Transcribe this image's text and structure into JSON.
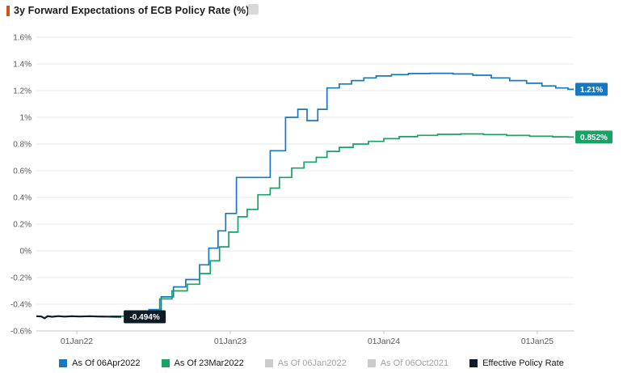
{
  "title": "3y Forward Expectations of ECB Policy Rate (%)",
  "colors": {
    "accent": "#cf5420",
    "blue": "#1878be",
    "green": "#17a266",
    "dark": "#0e1c26",
    "inactive_gray": "#cccccc",
    "grid": "#e9e9e9",
    "axis_line": "#c4c4c4",
    "axis_text": "#58595b",
    "badge_text": "#ffffff"
  },
  "chart_data": {
    "type": "line",
    "step": true,
    "title": "3y Forward Expectations of ECB Policy Rate (%)",
    "xlabel": "",
    "ylabel": "%",
    "ylim": [
      -0.6,
      1.6
    ],
    "xlim": [
      2021.737,
      2025.237
    ],
    "grid": "horizontal",
    "legend_position": "bottom",
    "yticks": [
      {
        "v": 1.6,
        "label": "1.6%"
      },
      {
        "v": 1.4,
        "label": "1.4%"
      },
      {
        "v": 1.2,
        "label": "1.2%"
      },
      {
        "v": 1.0,
        "label": "1%"
      },
      {
        "v": 0.8,
        "label": "0.8%"
      },
      {
        "v": 0.6,
        "label": "0.6%"
      },
      {
        "v": 0.4,
        "label": "0.4%"
      },
      {
        "v": 0.2,
        "label": "0.2%"
      },
      {
        "v": 0.0,
        "label": "0%"
      },
      {
        "v": -0.2,
        "label": "-0.2%"
      },
      {
        "v": -0.4,
        "label": "-0.4%"
      },
      {
        "v": -0.6,
        "label": "-0.6%"
      }
    ],
    "xticks": [
      {
        "t": 2022.0,
        "label": "01Jan22"
      },
      {
        "t": 2023.0,
        "label": "01Jan23"
      },
      {
        "t": 2024.0,
        "label": "01Jan24"
      },
      {
        "t": 2025.0,
        "label": "01Jan25"
      }
    ],
    "series": [
      {
        "name": "As Of 06Apr2022",
        "color": "#1878be",
        "style": "step",
        "extend_right": true,
        "end_label": "1.21%",
        "end_value": 1.21,
        "badge": "right",
        "points": [
          [
            2022.27,
            -0.49
          ],
          [
            2022.47,
            -0.44
          ],
          [
            2022.55,
            -0.345
          ],
          [
            2022.63,
            -0.27
          ],
          [
            2022.71,
            -0.215
          ],
          [
            2022.8,
            -0.105
          ],
          [
            2022.86,
            0.02
          ],
          [
            2022.92,
            0.15
          ],
          [
            2022.97,
            0.28
          ],
          [
            2023.04,
            0.55
          ],
          [
            2023.26,
            0.75
          ],
          [
            2023.36,
            1.0
          ],
          [
            2023.44,
            1.06
          ],
          [
            2023.5,
            0.975
          ],
          [
            2023.57,
            1.06
          ],
          [
            2023.63,
            1.22
          ],
          [
            2023.71,
            1.25
          ],
          [
            2023.79,
            1.275
          ],
          [
            2023.87,
            1.295
          ],
          [
            2023.95,
            1.31
          ],
          [
            2024.05,
            1.32
          ],
          [
            2024.16,
            1.328
          ],
          [
            2024.3,
            1.33
          ],
          [
            2024.45,
            1.325
          ],
          [
            2024.58,
            1.315
          ],
          [
            2024.7,
            1.295
          ],
          [
            2024.82,
            1.275
          ],
          [
            2024.93,
            1.255
          ],
          [
            2025.03,
            1.235
          ],
          [
            2025.12,
            1.22
          ],
          [
            2025.2,
            1.21
          ]
        ]
      },
      {
        "name": "As Of 23Mar2022",
        "color": "#17a266",
        "style": "step",
        "extend_right": true,
        "end_label": "0.852%",
        "end_value": 0.852,
        "badge": "right",
        "points": [
          [
            2022.22,
            -0.49
          ],
          [
            2022.46,
            -0.45
          ],
          [
            2022.54,
            -0.36
          ],
          [
            2022.62,
            -0.3
          ],
          [
            2022.72,
            -0.25
          ],
          [
            2022.8,
            -0.17
          ],
          [
            2022.87,
            -0.075
          ],
          [
            2022.93,
            0.03
          ],
          [
            2022.99,
            0.14
          ],
          [
            2023.05,
            0.255
          ],
          [
            2023.11,
            0.31
          ],
          [
            2023.18,
            0.42
          ],
          [
            2023.26,
            0.47
          ],
          [
            2023.32,
            0.55
          ],
          [
            2023.4,
            0.62
          ],
          [
            2023.48,
            0.665
          ],
          [
            2023.56,
            0.7
          ],
          [
            2023.63,
            0.745
          ],
          [
            2023.71,
            0.775
          ],
          [
            2023.8,
            0.8
          ],
          [
            2023.9,
            0.82
          ],
          [
            2024.0,
            0.84
          ],
          [
            2024.1,
            0.855
          ],
          [
            2024.22,
            0.865
          ],
          [
            2024.35,
            0.873
          ],
          [
            2024.5,
            0.876
          ],
          [
            2024.65,
            0.871
          ],
          [
            2024.8,
            0.864
          ],
          [
            2024.95,
            0.858
          ],
          [
            2025.1,
            0.854
          ],
          [
            2025.2,
            0.852
          ]
        ]
      },
      {
        "name": "Effective Policy Rate",
        "color": "#0e1c26",
        "style": "line",
        "extend_right": false,
        "end_label": "-0.494%",
        "end_value": -0.494,
        "badge": "at-end",
        "points": [
          [
            2021.737,
            -0.49
          ],
          [
            2021.77,
            -0.492
          ],
          [
            2021.79,
            -0.505
          ],
          [
            2021.81,
            -0.49
          ],
          [
            2021.84,
            -0.494
          ],
          [
            2021.88,
            -0.489
          ],
          [
            2021.92,
            -0.493
          ],
          [
            2021.97,
            -0.49
          ],
          [
            2022.02,
            -0.492
          ],
          [
            2022.08,
            -0.49
          ],
          [
            2022.14,
            -0.492
          ],
          [
            2022.2,
            -0.493
          ],
          [
            2022.25,
            -0.494
          ],
          [
            2022.29,
            -0.494
          ]
        ]
      }
    ],
    "legend": [
      {
        "label": "As Of 06Apr2022",
        "color": "#1878be",
        "active": true
      },
      {
        "label": "As Of 23Mar2022",
        "color": "#17a266",
        "active": true
      },
      {
        "label": "As Of 06Jan2022",
        "color": "#cccccc",
        "active": false
      },
      {
        "label": "As Of 06Oct2021",
        "color": "#cccccc",
        "active": false
      },
      {
        "label": "Effective Policy Rate",
        "color": "#0e1c26",
        "active": true
      }
    ]
  }
}
